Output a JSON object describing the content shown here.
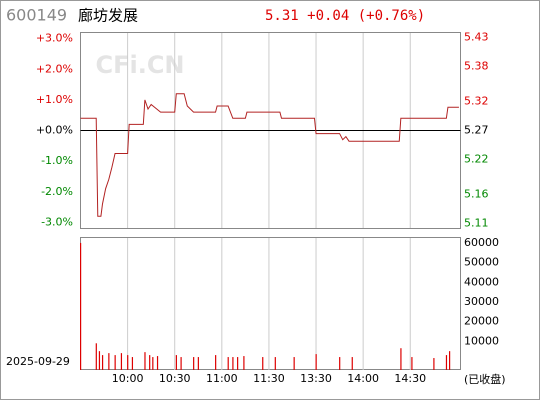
{
  "chart_data": [
    {
      "type": "line",
      "code": "600149",
      "title": "廊坊发展",
      "quote": "5.31 +0.04 (+0.76%)",
      "watermark": "CFi.CN",
      "x": [
        0,
        10,
        11,
        13,
        14,
        16,
        18,
        20,
        22,
        30,
        31,
        40,
        41,
        43,
        45,
        51,
        60,
        61,
        66,
        68,
        72,
        86,
        87,
        94,
        97,
        105,
        106,
        127,
        128,
        149,
        150,
        165,
        167,
        169,
        171,
        203,
        204,
        233,
        234,
        241
      ],
      "series": [
        {
          "color": "#b22222",
          "values": [
            0.4,
            0.4,
            -2.8,
            -2.8,
            -2.4,
            -1.9,
            -1.6,
            -1.2,
            -0.75,
            -0.75,
            0.2,
            0.2,
            1.0,
            0.7,
            0.85,
            0.6,
            0.6,
            1.2,
            1.2,
            0.8,
            0.6,
            0.6,
            0.8,
            0.8,
            0.4,
            0.4,
            0.6,
            0.6,
            0.4,
            0.4,
            -0.1,
            -0.1,
            -0.3,
            -0.2,
            -0.35,
            -0.35,
            0.4,
            0.4,
            0.76,
            0.76
          ]
        }
      ],
      "xlim": [
        0,
        242
      ],
      "ylim": [
        -3.2,
        3.2
      ],
      "yticks": [
        {
          "value": 3.0,
          "label": "+3.0%"
        },
        {
          "value": 2.0,
          "label": "+2.0%"
        },
        {
          "value": 1.0,
          "label": "+1.0%"
        },
        {
          "value": 0,
          "label": "+0.0%"
        },
        {
          "value": -1.0,
          "label": "-1.0%"
        },
        {
          "value": -2.0,
          "label": "-2.0%"
        },
        {
          "value": -3.0,
          "label": "-3.0%"
        }
      ],
      "y2lim": [
        5.101,
        5.439
      ],
      "y2ticks": [
        5.43,
        5.38,
        5.32,
        5.27,
        5.22,
        5.16,
        5.11
      ]
    },
    {
      "type": "bar",
      "date": "2025-09-29",
      "status": "(已收盘)",
      "color": "#dd0000",
      "x": [
        0,
        10,
        12,
        14,
        18,
        22,
        26,
        30,
        33,
        41,
        44,
        46,
        49,
        61,
        64,
        72,
        75,
        86,
        94,
        97,
        100,
        104,
        116,
        124,
        136,
        150,
        165,
        173,
        204,
        211,
        225,
        233,
        235
      ],
      "values": [
        60000,
        9000,
        5000,
        3000,
        4000,
        3000,
        4000,
        3000,
        2000,
        4500,
        3000,
        2000,
        2500,
        3000,
        2000,
        2000,
        2000,
        3000,
        2000,
        2000,
        2000,
        2500,
        2000,
        2000,
        2000,
        3500,
        2000,
        2000,
        6500,
        2000,
        1500,
        3000,
        5000
      ],
      "xlim": [
        0,
        242
      ],
      "ylim": [
        0,
        62000
      ],
      "yticks": [
        60000,
        50000,
        40000,
        30000,
        20000,
        10000
      ],
      "xticks": [
        {
          "value": 30,
          "label": "10:00"
        },
        {
          "value": 60,
          "label": "10:30"
        },
        {
          "value": 90,
          "label": "11:00"
        },
        {
          "value": 120,
          "label": "11:30"
        },
        {
          "value": 150,
          "label": "13:30"
        },
        {
          "value": 180,
          "label": "14:00"
        },
        {
          "value": 210,
          "label": "14:30"
        }
      ]
    }
  ]
}
